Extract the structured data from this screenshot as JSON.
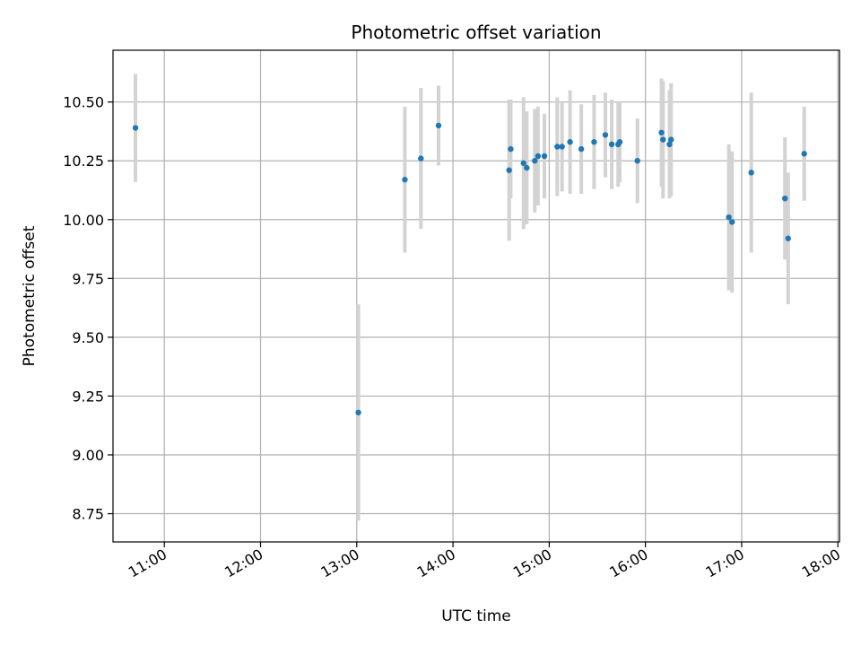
{
  "chart_data": {
    "type": "scatter",
    "title": "Photometric offset variation",
    "xlabel": "UTC time",
    "ylabel": "Photometric offset",
    "xlim": [
      "10:28",
      "18:01"
    ],
    "ylim": [
      8.63,
      10.72
    ],
    "x_ticks": [
      "11:00",
      "12:00",
      "13:00",
      "14:00",
      "15:00",
      "16:00",
      "17:00",
      "18:00"
    ],
    "y_ticks": [
      "8.75",
      "9.00",
      "9.25",
      "9.50",
      "9.75",
      "10.00",
      "10.25",
      "10.50"
    ],
    "grid": true,
    "colors": {
      "point": "#1f77b4",
      "errorbar": "#d3d3d3",
      "grid": "#b0b0b0"
    },
    "series": [
      {
        "points": [
          {
            "x": "10:42",
            "y": 10.39,
            "err": 0.23
          },
          {
            "x": "13:01",
            "y": 9.18,
            "err": 0.46
          },
          {
            "x": "13:30",
            "y": 10.17,
            "err": 0.31
          },
          {
            "x": "13:40",
            "y": 10.26,
            "err": 0.3
          },
          {
            "x": "13:51",
            "y": 10.4,
            "err": 0.17
          },
          {
            "x": "14:35",
            "y": 10.21,
            "err": 0.3
          },
          {
            "x": "14:36",
            "y": 10.3,
            "err": 0.21
          },
          {
            "x": "14:44",
            "y": 10.24,
            "err": 0.28
          },
          {
            "x": "14:46",
            "y": 10.22,
            "err": 0.24
          },
          {
            "x": "14:51",
            "y": 10.25,
            "err": 0.22
          },
          {
            "x": "14:53",
            "y": 10.27,
            "err": 0.21
          },
          {
            "x": "14:57",
            "y": 10.27,
            "err": 0.18
          },
          {
            "x": "15:05",
            "y": 10.31,
            "err": 0.21
          },
          {
            "x": "15:08",
            "y": 10.31,
            "err": 0.19
          },
          {
            "x": "15:13",
            "y": 10.33,
            "err": 0.22
          },
          {
            "x": "15:20",
            "y": 10.3,
            "err": 0.19
          },
          {
            "x": "15:28",
            "y": 10.33,
            "err": 0.2
          },
          {
            "x": "15:35",
            "y": 10.36,
            "err": 0.18
          },
          {
            "x": "15:39",
            "y": 10.32,
            "err": 0.19
          },
          {
            "x": "15:43",
            "y": 10.32,
            "err": 0.18
          },
          {
            "x": "15:44",
            "y": 10.33,
            "err": 0.17
          },
          {
            "x": "15:55",
            "y": 10.25,
            "err": 0.18
          },
          {
            "x": "16:10",
            "y": 10.37,
            "err": 0.23
          },
          {
            "x": "16:11",
            "y": 10.34,
            "err": 0.25
          },
          {
            "x": "16:15",
            "y": 10.32,
            "err": 0.23
          },
          {
            "x": "16:16",
            "y": 10.34,
            "err": 0.24
          },
          {
            "x": "16:52",
            "y": 10.01,
            "err": 0.31
          },
          {
            "x": "16:54",
            "y": 9.99,
            "err": 0.3
          },
          {
            "x": "17:06",
            "y": 10.2,
            "err": 0.34
          },
          {
            "x": "17:27",
            "y": 10.09,
            "err": 0.26
          },
          {
            "x": "17:29",
            "y": 9.92,
            "err": 0.28
          },
          {
            "x": "17:39",
            "y": 10.28,
            "err": 0.2
          }
        ]
      }
    ]
  }
}
